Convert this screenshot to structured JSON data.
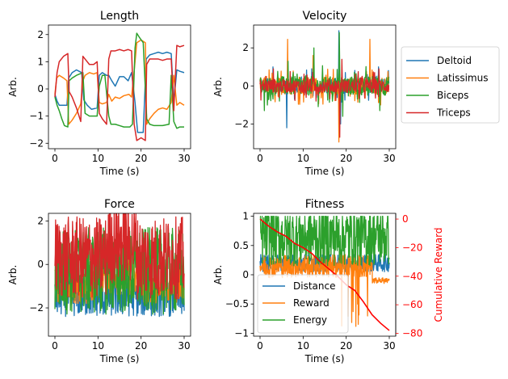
{
  "colors": {
    "blue": "#1f77b4",
    "orange": "#ff7f0e",
    "green": "#2ca02c",
    "red": "#d62728",
    "reward_axis": "#ff0000"
  },
  "chart_data": [
    {
      "id": "length",
      "type": "line",
      "title": "Length",
      "xlabel": "Time (s)",
      "ylabel": "Arb.",
      "xlim": [
        -1.5,
        31.5
      ],
      "ylim": [
        -2.2,
        2.35
      ],
      "xticks": [
        0,
        10,
        20,
        30
      ],
      "yticks": [
        -2,
        -1,
        0,
        1,
        2
      ],
      "legend": "none",
      "series": [
        {
          "name": "Deltoid",
          "color": "blue",
          "x": [
            0,
            0.5,
            1,
            2,
            2.8,
            3.2,
            4,
            5,
            6.2,
            6.7,
            7.5,
            8.5,
            9.8,
            10.3,
            11,
            12,
            12.5,
            13.2,
            14,
            15,
            16,
            17,
            17.8,
            18.6,
            19.2,
            19.8,
            20.5,
            21.2,
            22,
            23,
            24,
            25,
            26,
            27,
            27.6,
            28.3,
            29,
            30
          ],
          "y": [
            -0.2,
            -0.45,
            -0.6,
            -0.6,
            -0.6,
            0.4,
            0.6,
            0.7,
            0.6,
            -0.4,
            -0.6,
            -0.75,
            -0.7,
            0.5,
            0.6,
            0.5,
            0.5,
            0.3,
            0.1,
            0.45,
            0.45,
            0.3,
            0.6,
            -0.5,
            -1.6,
            -1.6,
            -1.6,
            1.1,
            1.25,
            1.3,
            1.35,
            1.3,
            1.35,
            1.3,
            -0.5,
            0.7,
            0.65,
            0.6
          ]
        },
        {
          "name": "Latissimus",
          "color": "orange",
          "x": [
            0,
            0.4,
            1,
            2,
            2.8,
            3.2,
            4,
            5,
            6,
            6.5,
            7,
            8,
            9,
            9.8,
            10.3,
            11,
            12,
            12.5,
            13.2,
            14,
            15,
            16,
            17.2,
            17.8,
            18.6,
            19,
            20,
            21,
            21.3,
            22,
            23,
            24,
            25,
            26,
            27,
            27.6,
            28.3,
            29,
            30
          ],
          "y": [
            -0.2,
            0.4,
            0.5,
            0.4,
            0.3,
            -1.3,
            -1.15,
            -0.9,
            -0.55,
            0.3,
            0.5,
            0.6,
            0.55,
            0.6,
            -0.5,
            -0.55,
            -0.5,
            -0.2,
            -0.45,
            -0.3,
            -0.35,
            -0.25,
            -0.2,
            -0.3,
            1.0,
            1.7,
            1.8,
            1.7,
            -1.3,
            -1.1,
            -0.9,
            -0.75,
            -0.7,
            -0.75,
            -0.5,
            0.5,
            -0.6,
            -0.5,
            -0.6
          ]
        },
        {
          "name": "Biceps",
          "color": "green",
          "x": [
            0,
            0.5,
            1,
            1.6,
            2.2,
            3,
            3.3,
            4,
            5,
            6.5,
            7,
            8,
            9.8,
            10.3,
            11,
            11.6,
            12.5,
            13,
            14,
            15,
            16,
            17.4,
            18,
            18.6,
            19,
            19.6,
            20.5,
            21.3,
            22,
            23,
            24,
            25,
            26.5,
            27,
            27.6,
            28.3,
            29,
            30
          ],
          "y": [
            -0.3,
            -0.6,
            -0.8,
            -1.1,
            -1.35,
            -1.4,
            0.3,
            0.4,
            0.5,
            0.6,
            -0.9,
            -1.0,
            -1.0,
            0.1,
            0.5,
            0.5,
            -1.0,
            -1.3,
            -1.3,
            -1.35,
            -1.4,
            -1.4,
            -1.3,
            1.5,
            2.05,
            1.9,
            1.7,
            -1.1,
            -1.3,
            -1.35,
            -1.35,
            -1.35,
            -1.3,
            0.5,
            -1.2,
            -1.45,
            -1.4,
            -1.4
          ]
        },
        {
          "name": "Triceps",
          "color": "red",
          "x": [
            0,
            0.5,
            1,
            2,
            3,
            3.3,
            4,
            5,
            6,
            6.5,
            7,
            8,
            9,
            9.8,
            10.3,
            11,
            12,
            12.5,
            13,
            14,
            15,
            16,
            17,
            17.8,
            18.4,
            19,
            20,
            21,
            21.3,
            22,
            23,
            24,
            25,
            26,
            27,
            27.6,
            28.3,
            29,
            30
          ],
          "y": [
            -0.3,
            0.6,
            1.0,
            1.2,
            1.3,
            -0.1,
            -0.3,
            -0.7,
            -1.2,
            1.2,
            1.1,
            0.9,
            0.9,
            1.0,
            -0.9,
            -1.1,
            -1.3,
            1.1,
            1.4,
            1.4,
            1.45,
            1.4,
            1.45,
            1.4,
            -1.3,
            -1.9,
            -1.8,
            -1.9,
            0.9,
            1.1,
            1.1,
            1.1,
            1.05,
            1.1,
            1.1,
            -0.8,
            1.6,
            1.55,
            1.6
          ]
        }
      ]
    },
    {
      "id": "velocity",
      "type": "line",
      "title": "Velocity",
      "xlabel": "Time (s)",
      "ylabel": "Arb.",
      "xlim": [
        -1.5,
        31.5
      ],
      "ylim": [
        -3.3,
        3.2
      ],
      "xticks": [
        0,
        10,
        20,
        30
      ],
      "yticks": [
        -2,
        0,
        2
      ],
      "legend": "outside-right",
      "series": [
        {
          "name": "Deltoid",
          "color": "blue",
          "amp": 0.4,
          "spikes": [
            [
              6.2,
              -2.2
            ],
            [
              18.3,
              2.9
            ],
            [
              18.7,
              -2.0
            ],
            [
              12,
              0.9
            ],
            [
              3,
              1.0
            ],
            [
              27.5,
              1.0
            ]
          ]
        },
        {
          "name": "Latissimus",
          "color": "orange",
          "amp": 0.45,
          "spikes": [
            [
              6.4,
              2.45
            ],
            [
              18.3,
              -2.95
            ],
            [
              25.5,
              2.45
            ],
            [
              12.3,
              1.6
            ],
            [
              28,
              -1.0
            ]
          ]
        },
        {
          "name": "Biceps",
          "color": "green",
          "amp": 0.5,
          "spikes": [
            [
              18.4,
              2.8
            ],
            [
              12.5,
              2.0
            ],
            [
              19.2,
              -1.6
            ],
            [
              6.5,
              1.3
            ],
            [
              1,
              -1.3
            ],
            [
              27.8,
              -1.3
            ]
          ]
        },
        {
          "name": "Triceps",
          "color": "red",
          "amp": 0.35,
          "spikes": [
            [
              18.5,
              -2.7
            ],
            [
              19.0,
              1.4
            ],
            [
              3.1,
              0.9
            ],
            [
              13,
              -0.8
            ],
            [
              27.6,
              0.9
            ]
          ]
        }
      ]
    },
    {
      "id": "force",
      "type": "line",
      "title": "Force",
      "xlabel": "Time (s)",
      "ylabel": "Arb.",
      "xlim": [
        -1.5,
        31.5
      ],
      "ylim": [
        -3.3,
        2.35
      ],
      "xticks": [
        0,
        10,
        20,
        30
      ],
      "yticks": [
        -2,
        0,
        2
      ],
      "legend": "none",
      "series": [
        {
          "name": "Deltoid",
          "color": "blue",
          "center": -1.5,
          "amp": 0.9
        },
        {
          "name": "Latissimus",
          "color": "orange",
          "center": -0.9,
          "amp": 0.9
        },
        {
          "name": "Biceps",
          "color": "green",
          "center": -0.3,
          "amp": 2.0
        },
        {
          "name": "Triceps",
          "color": "red",
          "center": 0.3,
          "amp": 1.9
        }
      ]
    },
    {
      "id": "fitness",
      "type": "line",
      "title": "Fitness",
      "xlabel": "Time (s)",
      "ylabel": "Arb.",
      "y2label": "Cumulative Reward",
      "xlim": [
        -1.5,
        31.5
      ],
      "ylim": [
        -1.05,
        1.05
      ],
      "y2lim": [
        -82,
        4
      ],
      "xticks": [
        0,
        10,
        20,
        30
      ],
      "yticks": [
        -1.0,
        -0.5,
        0.0,
        0.5,
        1.0
      ],
      "y2ticks": [
        0,
        -20,
        -40,
        -60,
        -80
      ],
      "legend": "lower-left",
      "series": [
        {
          "name": "Distance",
          "color": "blue",
          "center": 0.2,
          "amp": 0.15
        },
        {
          "name": "Reward",
          "color": "orange",
          "center": 0.15,
          "amp": 0.2
        },
        {
          "name": "Energy",
          "color": "green",
          "center": 0.5,
          "amp": 0.5
        },
        {
          "name": "Cumulative Reward",
          "color": "reward_axis",
          "x": [
            0,
            2,
            4,
            6,
            8,
            10,
            12,
            14,
            16,
            18,
            20,
            22,
            24,
            26,
            28,
            30
          ],
          "y": [
            0,
            -5,
            -9,
            -12,
            -17,
            -20,
            -24,
            -30,
            -35,
            -40,
            -46,
            -50,
            -58,
            -67,
            -73,
            -78
          ]
        }
      ]
    }
  ]
}
